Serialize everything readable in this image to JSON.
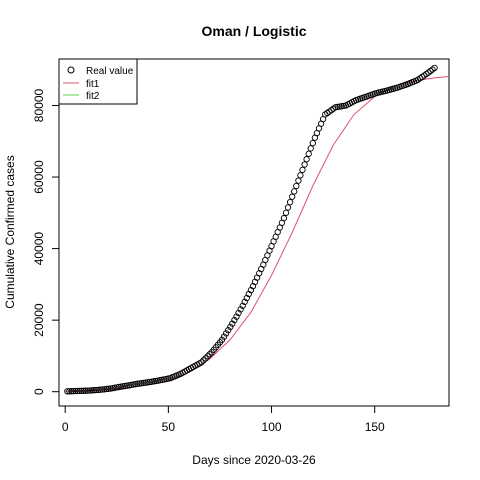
{
  "chart_data": {
    "type": "scatter",
    "title": "Oman / Logistic",
    "xlabel": "Days since 2020-03-26",
    "ylabel": "Cumulative Confirmed cases",
    "xlim": [
      -3,
      186
    ],
    "ylim": [
      -4000,
      93000
    ],
    "xticks": [
      0,
      50,
      100,
      150
    ],
    "yticks": [
      0,
      20000,
      40000,
      60000,
      80000
    ],
    "xtick_labels": [
      "0",
      "50",
      "100",
      "150"
    ],
    "ytick_labels": [
      "0",
      "20000",
      "40000",
      "60000",
      "80000"
    ],
    "legend": {
      "position": "top-left",
      "entries": [
        {
          "label": "Real value",
          "style": "open-circle",
          "color": "#000000"
        },
        {
          "label": "fit1",
          "style": "line",
          "color": "#df536b"
        },
        {
          "label": "fit2",
          "style": "line",
          "color": "#61d04f"
        }
      ]
    },
    "series": [
      {
        "name": "Real value",
        "kind": "points",
        "color": "#000000",
        "x": [
          1,
          6,
          11,
          16,
          21,
          26,
          31,
          36,
          41,
          46,
          51,
          56,
          61,
          66,
          71,
          76,
          81,
          86,
          91,
          96,
          101,
          106,
          111,
          116,
          121,
          126,
          131,
          136,
          141,
          146,
          151,
          156,
          161,
          166,
          171,
          176,
          179
        ],
        "y": [
          100,
          200,
          300,
          500,
          800,
          1300,
          1800,
          2300,
          2700,
          3200,
          3800,
          5000,
          6600,
          8200,
          11000,
          14500,
          19000,
          24000,
          29500,
          35500,
          42000,
          48500,
          56000,
          63500,
          71000,
          77500,
          79500,
          80000,
          81500,
          82500,
          83500,
          84200,
          85000,
          86000,
          87200,
          89200,
          90500
        ]
      },
      {
        "name": "fit1",
        "kind": "line",
        "color": "#df536b",
        "x": [
          0,
          10,
          20,
          30,
          40,
          50,
          60,
          70,
          80,
          90,
          100,
          110,
          120,
          130,
          140,
          150,
          160,
          170,
          180,
          186
        ],
        "y": [
          100,
          250,
          550,
          1050,
          1900,
          3100,
          5400,
          9100,
          14600,
          22200,
          32500,
          44500,
          57500,
          69000,
          77500,
          82500,
          85600,
          87000,
          87800,
          88100
        ]
      },
      {
        "name": "fit2",
        "kind": "line",
        "color": "#61d04f",
        "x": [],
        "y": []
      }
    ]
  }
}
